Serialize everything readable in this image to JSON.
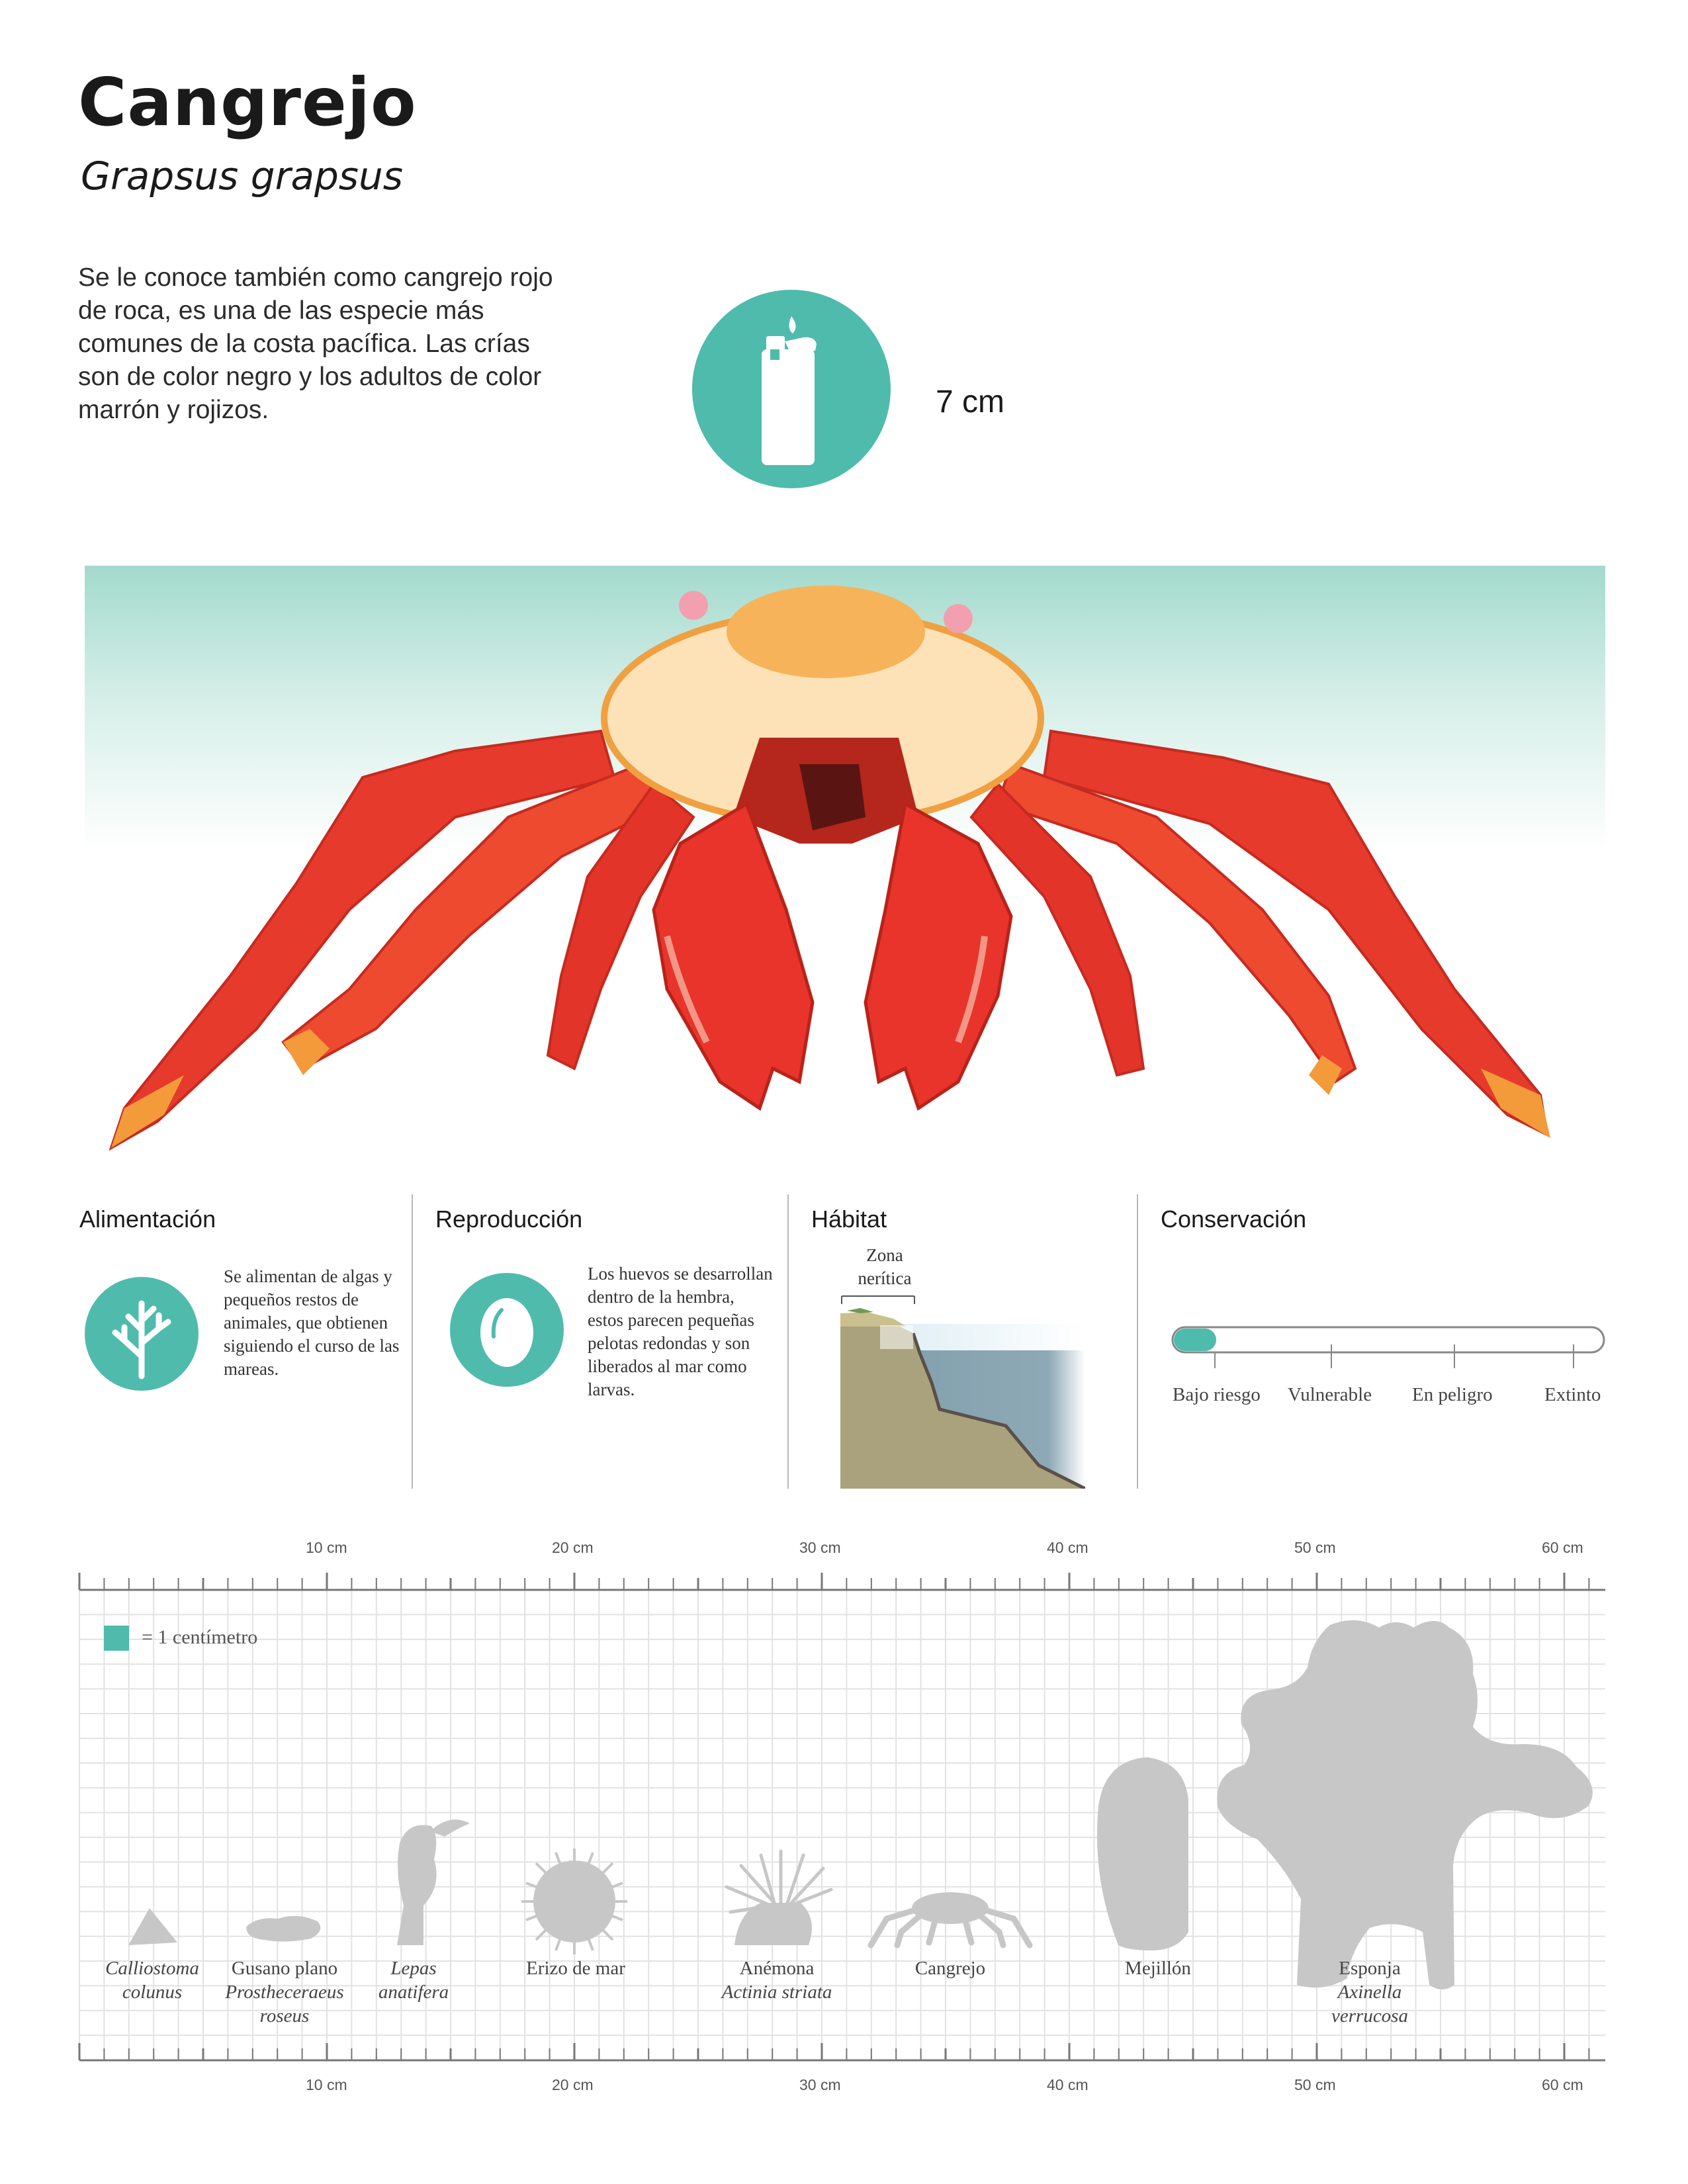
{
  "header": {
    "title": "Cangrejo",
    "scientific_name": "Grapsus grapsus",
    "description": "Se le conoce también como cangrejo rojo de roca, es una de las especie más comunes de la costa pacífica. Las crías son de color negro y los adultos de color marrón y rojizos.",
    "size_icon": "lighter-icon",
    "size_value": "7 cm"
  },
  "colors": {
    "accent": "#4fbbac",
    "crab_red": "#e4362a",
    "crab_orange": "#f39a3a",
    "silhouette_gray": "#c7c7c7",
    "grid_gray": "#dedede"
  },
  "panels": {
    "feeding": {
      "heading": "Alimentación",
      "icon": "coral-icon",
      "text": "Se alimentan de algas y pequeños restos de animales, que obtienen siguiendo el curso de las mareas."
    },
    "reproduction": {
      "heading": "Reproducción",
      "icon": "egg-icon",
      "text": "Los huevos se desarrollan dentro de la hembra, estos parecen pequeñas pelotas redondas y son liberados al mar como larvas."
    },
    "habitat": {
      "heading": "Hábitat",
      "zone_label": "Zona nerítica"
    },
    "conservation": {
      "heading": "Conservación",
      "levels": [
        "Bajo riesgo",
        "Vulnerable",
        "En peligro",
        "Extinto"
      ],
      "current_level": "Bajo riesgo"
    }
  },
  "comparison": {
    "scale_ticks": [
      "10 cm",
      "20 cm",
      "30 cm",
      "40 cm",
      "50 cm",
      "60 cm"
    ],
    "legend": "= 1 centímetro",
    "species": [
      {
        "common": "",
        "scientific": "Calliostoma colunus"
      },
      {
        "common": "Gusano plano",
        "scientific": "Prostheceraeus roseus"
      },
      {
        "common": "",
        "scientific": "Lepas anatifera"
      },
      {
        "common": "Erizo de mar",
        "scientific": ""
      },
      {
        "common": "Anémona",
        "scientific": "Actinia striata"
      },
      {
        "common": "Cangrejo",
        "scientific": ""
      },
      {
        "common": "Mejillón",
        "scientific": ""
      },
      {
        "common": "Esponja",
        "scientific": "Axinella verrucosa"
      }
    ]
  }
}
